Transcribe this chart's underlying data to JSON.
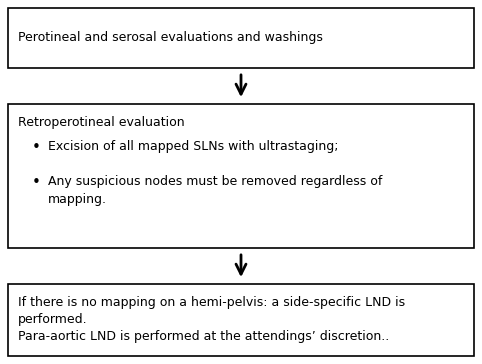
{
  "background_color": "#ffffff",
  "box1_text": "Perotineal and serosal evaluations and washings",
  "box2_title": "Retroperotineal evaluation",
  "box2_bullet1": "Excision of all mapped SLNs with ultrastaging;",
  "box2_bullet2": "Any suspicious nodes must be removed regardless of\nmapping.",
  "box3_line1": "If there is no mapping on a hemi-pelvis: a side-specific LND is\nperformed.",
  "box3_line2": "Para-aortic LND is performed at the attendings’ discretion..",
  "text_color": "#000000",
  "box_edge_color": "#000000",
  "box_face_color": "#ffffff",
  "font_size": 9.0,
  "arrow_color": "#000000",
  "fig_width": 4.82,
  "fig_height": 3.64,
  "dpi": 100
}
